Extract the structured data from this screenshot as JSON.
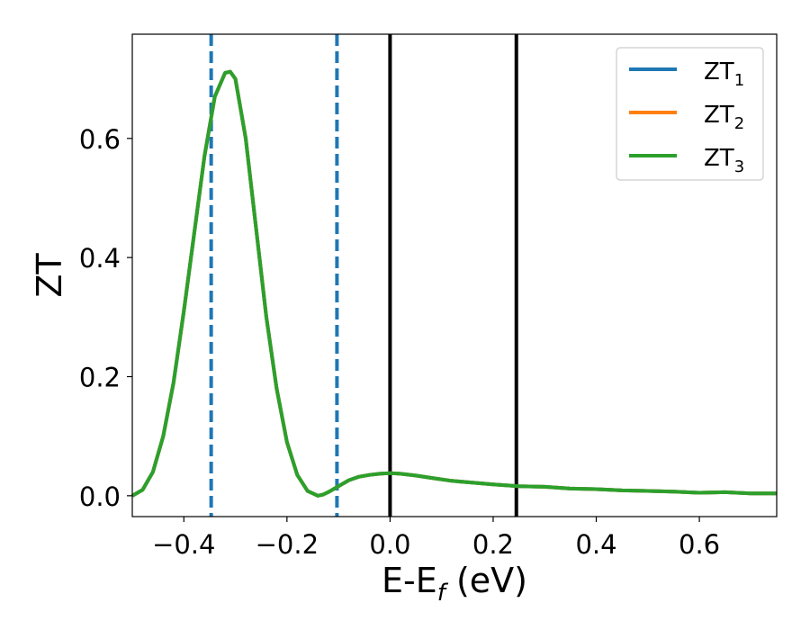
{
  "chart_data": {
    "type": "line",
    "xlabel": "E-E",
    "xlabel_sub": "f",
    "xlabel_unit": " (eV)",
    "ylabel": "ZT",
    "xlim": [
      -0.5,
      0.75
    ],
    "ylim": [
      -0.035,
      0.775
    ],
    "xticks": [
      -0.4,
      -0.2,
      0.0,
      0.2,
      0.4,
      0.6
    ],
    "xtick_labels": [
      "−0.4",
      "−0.2",
      "0.0",
      "0.2",
      "0.4",
      "0.6"
    ],
    "yticks": [
      0.0,
      0.2,
      0.4,
      0.6
    ],
    "ytick_labels": [
      "0.0",
      "0.2",
      "0.4",
      "0.6"
    ],
    "grid": false,
    "legend_position": "top-right",
    "vlines": [
      {
        "x": -0.347,
        "style": "dashed",
        "color": "#1f77b4"
      },
      {
        "x": -0.103,
        "style": "dashed",
        "color": "#1f77b4"
      },
      {
        "x": 0.0,
        "style": "solid",
        "color": "#000000"
      },
      {
        "x": 0.245,
        "style": "solid",
        "color": "#000000"
      }
    ],
    "x": [
      -0.5,
      -0.48,
      -0.46,
      -0.44,
      -0.42,
      -0.4,
      -0.38,
      -0.36,
      -0.34,
      -0.32,
      -0.31,
      -0.3,
      -0.28,
      -0.26,
      -0.24,
      -0.22,
      -0.2,
      -0.18,
      -0.16,
      -0.14,
      -0.13,
      -0.12,
      -0.1,
      -0.08,
      -0.06,
      -0.04,
      -0.02,
      0.0,
      0.02,
      0.05,
      0.08,
      0.12,
      0.16,
      0.2,
      0.25,
      0.3,
      0.35,
      0.4,
      0.45,
      0.5,
      0.55,
      0.6,
      0.65,
      0.7,
      0.75
    ],
    "series": [
      {
        "name": "ZT",
        "sub": "1",
        "color": "#1f77b4",
        "values": [
          0.0,
          0.01,
          0.04,
          0.1,
          0.19,
          0.31,
          0.44,
          0.57,
          0.67,
          0.71,
          0.712,
          0.7,
          0.6,
          0.45,
          0.3,
          0.18,
          0.09,
          0.035,
          0.008,
          0.0,
          0.002,
          0.006,
          0.016,
          0.026,
          0.032,
          0.035,
          0.037,
          0.038,
          0.037,
          0.034,
          0.03,
          0.025,
          0.022,
          0.019,
          0.016,
          0.015,
          0.012,
          0.011,
          0.009,
          0.008,
          0.007,
          0.005,
          0.006,
          0.004,
          0.004
        ]
      },
      {
        "name": "ZT",
        "sub": "2",
        "color": "#ff7f0e",
        "values": [
          0.0,
          0.01,
          0.04,
          0.1,
          0.19,
          0.31,
          0.44,
          0.57,
          0.67,
          0.71,
          0.712,
          0.7,
          0.6,
          0.45,
          0.3,
          0.18,
          0.09,
          0.035,
          0.008,
          0.0,
          0.002,
          0.006,
          0.016,
          0.026,
          0.032,
          0.035,
          0.037,
          0.038,
          0.037,
          0.034,
          0.03,
          0.025,
          0.022,
          0.019,
          0.016,
          0.015,
          0.012,
          0.011,
          0.009,
          0.008,
          0.007,
          0.005,
          0.006,
          0.004,
          0.004
        ]
      },
      {
        "name": "ZT",
        "sub": "3",
        "color": "#2ca02c",
        "values": [
          0.0,
          0.01,
          0.04,
          0.1,
          0.19,
          0.31,
          0.44,
          0.57,
          0.67,
          0.71,
          0.712,
          0.7,
          0.6,
          0.45,
          0.3,
          0.18,
          0.09,
          0.035,
          0.008,
          0.0,
          0.002,
          0.006,
          0.016,
          0.026,
          0.032,
          0.035,
          0.037,
          0.038,
          0.037,
          0.034,
          0.03,
          0.025,
          0.022,
          0.019,
          0.016,
          0.015,
          0.012,
          0.011,
          0.009,
          0.008,
          0.007,
          0.005,
          0.006,
          0.004,
          0.004
        ]
      }
    ]
  }
}
